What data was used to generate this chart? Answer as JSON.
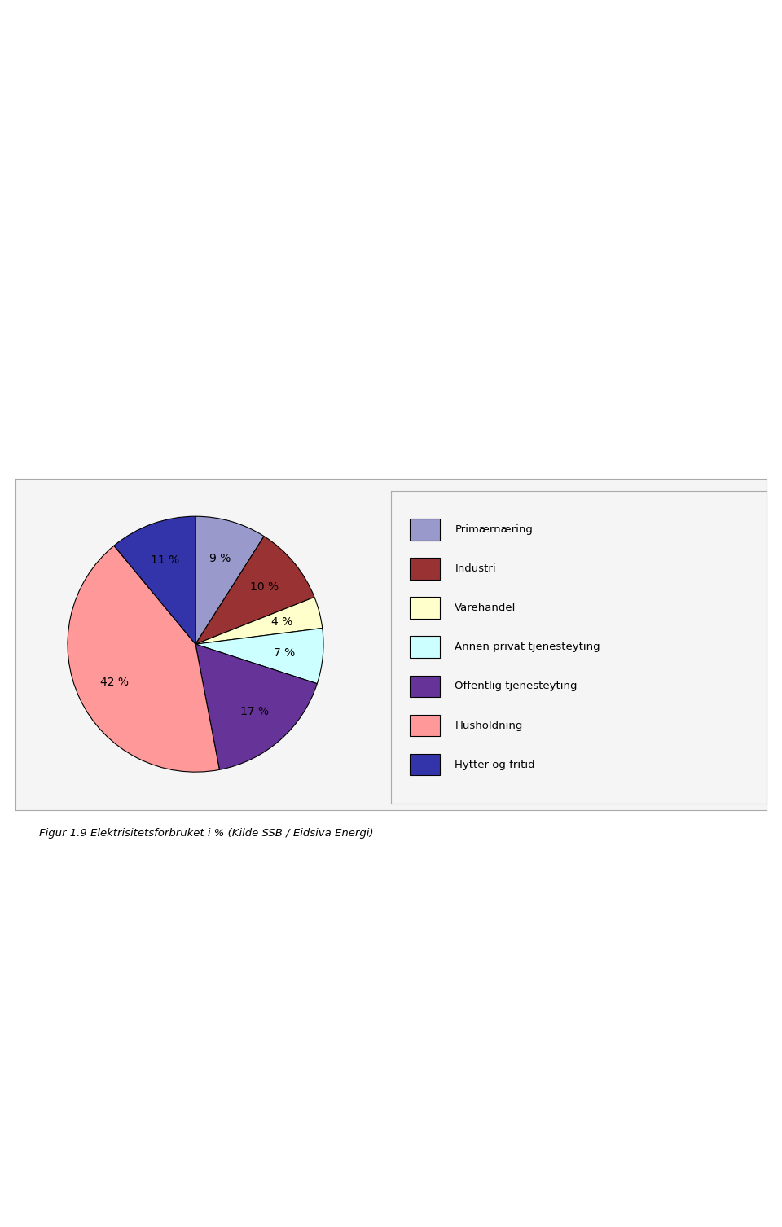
{
  "labels": [
    "Primærnæring",
    "Industri",
    "Varehandel",
    "Annen privat tjenesteyting",
    "Offentlig tjenesteyting",
    "Husholdning",
    "Hytter og fritid"
  ],
  "values": [
    9,
    10,
    4,
    7,
    17,
    42,
    11
  ],
  "colors": [
    "#9999CC",
    "#993333",
    "#FFFFCC",
    "#CCFFFF",
    "#663399",
    "#FF9999",
    "#3333AA"
  ],
  "pct_labels": [
    "9 %",
    "10 %",
    "4 %",
    "7 %",
    "17 %",
    "42 %",
    "11 %"
  ],
  "legend_colors": [
    "#9999CC",
    "#993333",
    "#FFFFCC",
    "#CCFFFF",
    "#663399",
    "#FF9999",
    "#3333AA"
  ],
  "bg_color": "#FFFFFF",
  "box_bg": "#F5F5F5",
  "title": "Figur 1.9 Elektrisitetsforbruket i % (Kilde SSB / Eidsiva Energi)",
  "startangle": 90
}
